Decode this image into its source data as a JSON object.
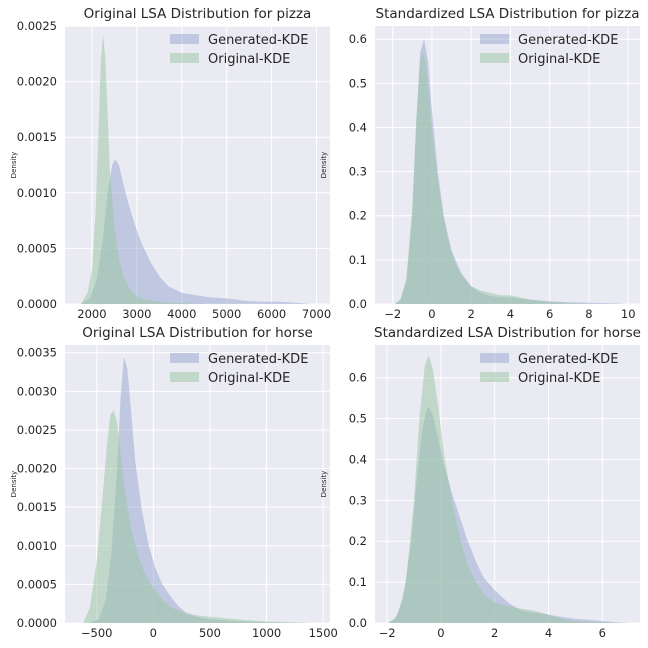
{
  "colors": {
    "generated": "#8da0cb",
    "original": "#97c49f",
    "background": "#eaeaf2"
  },
  "chart_data": [
    {
      "type": "area",
      "title": "Original LSA Distribution for pizza",
      "xlabel": "",
      "ylabel": "Density",
      "xlim": [
        1400,
        7300
      ],
      "ylim": [
        0,
        0.0025
      ],
      "xticks": [
        2000,
        3000,
        4000,
        5000,
        6000,
        7000
      ],
      "xtick_labels": [
        "2000",
        "3000",
        "4000",
        "5000",
        "6000",
        "7000"
      ],
      "yticks": [
        0,
        0.0005,
        0.001,
        0.0015,
        0.002,
        0.0025
      ],
      "ytick_labels": [
        "0.0000",
        "0.0005",
        "0.0010",
        "0.0015",
        "0.0020",
        "0.0025"
      ],
      "legend": [
        "Generated-KDE",
        "Original-KDE"
      ],
      "series": [
        {
          "name": "Generated-KDE",
          "x": [
            1750,
            1950,
            2100,
            2250,
            2350,
            2450,
            2520,
            2600,
            2700,
            2800,
            2950,
            3100,
            3300,
            3500,
            3700,
            4000,
            4300,
            4600,
            5000,
            5400,
            5800,
            6200,
            6600,
            6900
          ],
          "y": [
            0,
            5e-05,
            0.0002,
            0.0006,
            0.001,
            0.00125,
            0.0013,
            0.00125,
            0.00108,
            0.00092,
            0.00072,
            0.00055,
            0.00038,
            0.00025,
            0.00016,
            0.0001,
            8e-05,
            6e-05,
            5e-05,
            3e-05,
            2e-05,
            2e-05,
            1e-05,
            0
          ]
        },
        {
          "name": "Original-KDE",
          "x": [
            1750,
            1900,
            2000,
            2080,
            2150,
            2200,
            2250,
            2300,
            2350,
            2400,
            2500,
            2600,
            2700,
            2850,
            3000,
            3200,
            3500,
            3800,
            4200,
            4600
          ],
          "y": [
            0,
            0.0001,
            0.0003,
            0.0008,
            0.0016,
            0.0022,
            0.00242,
            0.0022,
            0.0017,
            0.0012,
            0.0007,
            0.0004,
            0.00025,
            0.00013,
            7e-05,
            4e-05,
            2e-05,
            1e-05,
            5e-06,
            0
          ]
        }
      ]
    },
    {
      "type": "area",
      "title": "Standardized LSA Distribution for pizza",
      "xlabel": "",
      "ylabel": "Density",
      "xlim": [
        -2.9,
        10.6
      ],
      "ylim": [
        0,
        0.63
      ],
      "xticks": [
        -2,
        0,
        2,
        4,
        6,
        8,
        10
      ],
      "xtick_labels": [
        "−2",
        "0",
        "2",
        "4",
        "6",
        "8",
        "10"
      ],
      "yticks": [
        0,
        0.1,
        0.2,
        0.3,
        0.4,
        0.5,
        0.6
      ],
      "ytick_labels": [
        "0.0",
        "0.1",
        "0.2",
        "0.3",
        "0.4",
        "0.5",
        "0.6"
      ],
      "legend": [
        "Generated-KDE",
        "Original-KDE"
      ],
      "series": [
        {
          "name": "Generated-KDE",
          "x": [
            -1.9,
            -1.6,
            -1.3,
            -1.0,
            -0.8,
            -0.6,
            -0.4,
            -0.2,
            0.0,
            0.3,
            0.6,
            1.0,
            1.5,
            2.0,
            2.5,
            3.0,
            3.5,
            4.0,
            4.5,
            5.0,
            6.0,
            7.0,
            8.0,
            9.0,
            10.0
          ],
          "y": [
            0,
            0.01,
            0.05,
            0.2,
            0.4,
            0.57,
            0.6,
            0.55,
            0.44,
            0.3,
            0.2,
            0.12,
            0.07,
            0.04,
            0.025,
            0.018,
            0.015,
            0.015,
            0.012,
            0.01,
            0.006,
            0.004,
            0.003,
            0.002,
            0
          ]
        },
        {
          "name": "Original-KDE",
          "x": [
            -1.9,
            -1.6,
            -1.3,
            -1.0,
            -0.8,
            -0.6,
            -0.45,
            -0.3,
            -0.1,
            0.1,
            0.4,
            0.8,
            1.2,
            1.6,
            2.0,
            2.5,
            3.0,
            3.5,
            4.0,
            4.5,
            5.0,
            6.0,
            7.0,
            8.0
          ],
          "y": [
            0,
            0.01,
            0.06,
            0.22,
            0.42,
            0.55,
            0.57,
            0.54,
            0.45,
            0.35,
            0.25,
            0.15,
            0.09,
            0.06,
            0.04,
            0.03,
            0.025,
            0.02,
            0.02,
            0.015,
            0.01,
            0.005,
            0.002,
            0
          ]
        }
      ]
    },
    {
      "type": "area",
      "title": "Original LSA Distribution for horse",
      "xlabel": "",
      "ylabel": "Density",
      "xlim": [
        -780,
        1560
      ],
      "ylim": [
        0,
        0.0036
      ],
      "xticks": [
        -500,
        0,
        500,
        1000,
        1500
      ],
      "xtick_labels": [
        "−500",
        "0",
        "500",
        "1000",
        "1500"
      ],
      "yticks": [
        0,
        0.0005,
        0.001,
        0.0015,
        0.002,
        0.0025,
        0.003,
        0.0035
      ],
      "ytick_labels": [
        "0.0000",
        "0.0005",
        "0.0010",
        "0.0015",
        "0.0020",
        "0.0025",
        "0.0030",
        "0.0035"
      ],
      "legend": [
        "Generated-KDE",
        "Original-KDE"
      ],
      "series": [
        {
          "name": "Generated-KDE",
          "x": [
            -560,
            -480,
            -420,
            -370,
            -320,
            -290,
            -260,
            -230,
            -200,
            -160,
            -100,
            -40,
            20,
            80,
            150,
            220,
            300,
            400,
            500,
            650,
            800,
            1000,
            1200,
            1400
          ],
          "y": [
            0,
            5e-05,
            0.0003,
            0.0009,
            0.002,
            0.0029,
            0.00345,
            0.0033,
            0.0028,
            0.0021,
            0.00145,
            0.001,
            0.0007,
            0.0005,
            0.00035,
            0.00022,
            0.00012,
            7e-05,
            5e-05,
            3e-05,
            2e-05,
            1e-05,
            5e-06,
            0
          ]
        },
        {
          "name": "Original-KDE",
          "x": [
            -620,
            -560,
            -500,
            -450,
            -410,
            -380,
            -350,
            -320,
            -290,
            -250,
            -200,
            -140,
            -80,
            0,
            80,
            160,
            260,
            380,
            500,
            650,
            800,
            1000,
            1200,
            1400
          ],
          "y": [
            0,
            0.0002,
            0.0008,
            0.0016,
            0.0023,
            0.0027,
            0.00275,
            0.0026,
            0.0022,
            0.0017,
            0.00125,
            0.0009,
            0.00065,
            0.00045,
            0.0003,
            0.0002,
            0.00014,
            0.0001,
            8e-05,
            6e-05,
            4e-05,
            2e-05,
            1e-05,
            0
          ]
        }
      ]
    },
    {
      "type": "area",
      "title": "Standardized LSA Distribution for horse",
      "xlabel": "",
      "ylabel": "Density",
      "xlim": [
        -2.45,
        7.4
      ],
      "ylim": [
        0,
        0.68
      ],
      "xticks": [
        -2,
        0,
        2,
        4,
        6
      ],
      "xtick_labels": [
        "−2",
        "0",
        "2",
        "4",
        "6"
      ],
      "yticks": [
        0,
        0.1,
        0.2,
        0.3,
        0.4,
        0.5,
        0.6
      ],
      "ytick_labels": [
        "0.0",
        "0.1",
        "0.2",
        "0.3",
        "0.4",
        "0.5",
        "0.6"
      ],
      "legend": [
        "Generated-KDE",
        "Original-KDE"
      ],
      "series": [
        {
          "name": "Generated-KDE",
          "x": [
            -2.0,
            -1.7,
            -1.4,
            -1.1,
            -0.9,
            -0.7,
            -0.5,
            -0.3,
            -0.1,
            0.1,
            0.4,
            0.7,
            1.0,
            1.3,
            1.6,
            2.0,
            2.5,
            3.0,
            3.5,
            4.0,
            4.5,
            5.0,
            5.5,
            6.0,
            6.5,
            7.0
          ],
          "y": [
            0,
            0.01,
            0.06,
            0.2,
            0.35,
            0.47,
            0.53,
            0.51,
            0.45,
            0.39,
            0.32,
            0.26,
            0.2,
            0.15,
            0.11,
            0.08,
            0.05,
            0.03,
            0.025,
            0.02,
            0.015,
            0.01,
            0.008,
            0.005,
            0.002,
            0
          ]
        },
        {
          "name": "Original-KDE",
          "x": [
            -1.9,
            -1.6,
            -1.3,
            -1.0,
            -0.8,
            -0.6,
            -0.45,
            -0.3,
            -0.1,
            0.1,
            0.4,
            0.7,
            1.0,
            1.3,
            1.6,
            2.0,
            2.5,
            3.0,
            3.5,
            4.0,
            4.5,
            5.0,
            6.0,
            7.0
          ],
          "y": [
            0,
            0.02,
            0.1,
            0.3,
            0.5,
            0.63,
            0.655,
            0.62,
            0.53,
            0.42,
            0.3,
            0.21,
            0.14,
            0.1,
            0.07,
            0.05,
            0.04,
            0.035,
            0.03,
            0.02,
            0.01,
            0.005,
            0.002,
            0
          ]
        }
      ]
    }
  ]
}
